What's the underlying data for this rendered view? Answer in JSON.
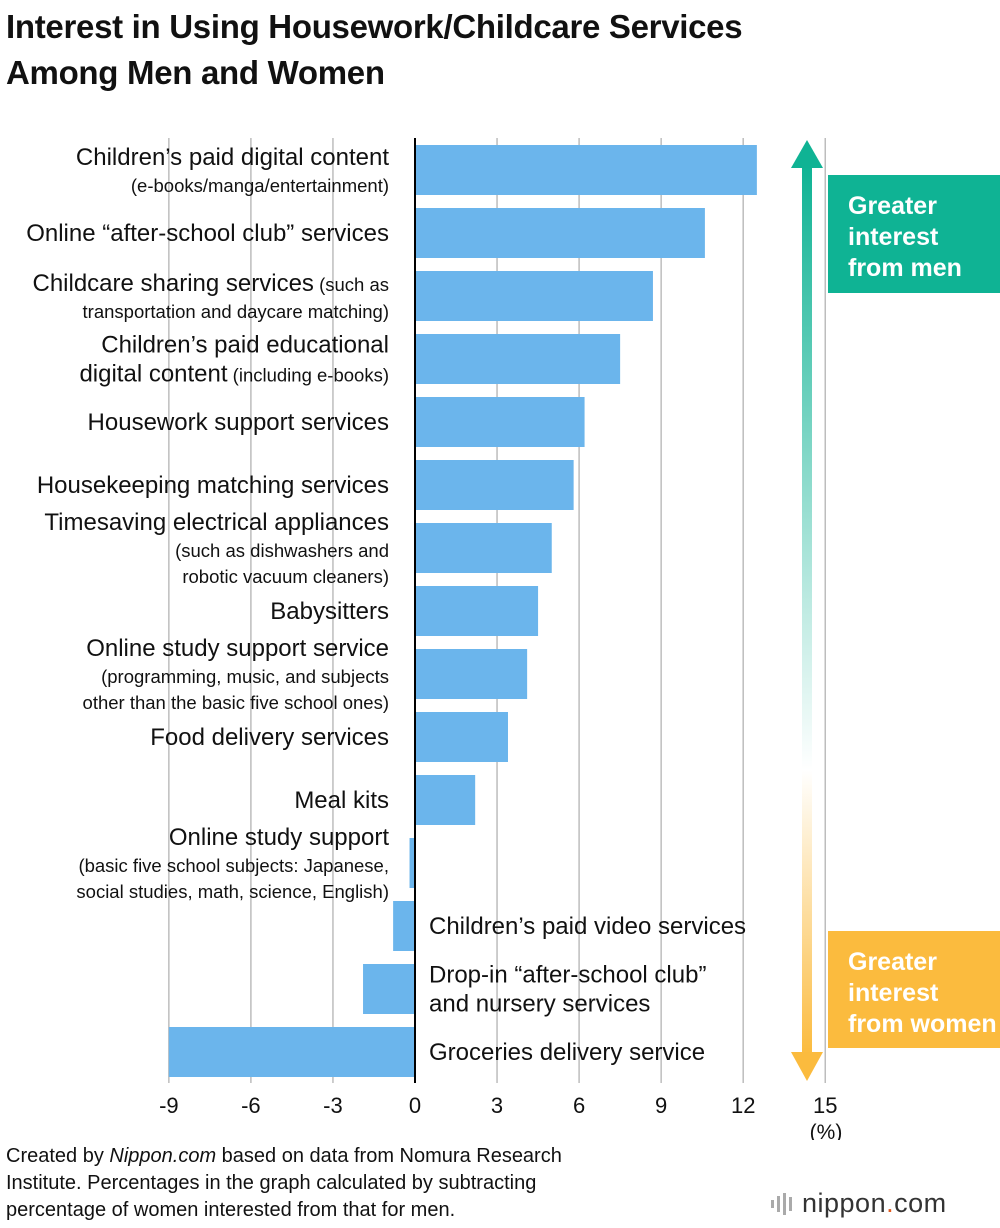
{
  "title_line1": "Interest in Using Housework/Childcare Services",
  "title_line2": "Among Men and Women",
  "legend": {
    "men": [
      "Greater",
      "interest",
      "from men"
    ],
    "women": [
      "Greater",
      "interest",
      "from women"
    ],
    "colors": {
      "men": "#0fb394",
      "women": "#fbbb3e",
      "bar": "#6bb5ec"
    }
  },
  "footer": {
    "prefix": "Created by ",
    "source": "Nippon.com",
    "line1_rest": " based on data from Nomura Research",
    "line2": "Institute. Percentages in the graph calculated by subtracting",
    "line3": "percentage of women interested from that for men."
  },
  "logo": {
    "name": "nippon",
    "dot": ".",
    "tld": "com"
  },
  "chart_data": {
    "type": "bar",
    "orientation": "horizontal",
    "title": "Interest in Using Housework/Childcare Services Among Men and Women",
    "xlabel": "(%)",
    "xlim": [
      -9,
      15
    ],
    "xticks": [
      "-9",
      "-6",
      "-3",
      "0",
      "3",
      "6",
      "9",
      "12",
      "15"
    ],
    "grid": true,
    "categories": [
      {
        "lines": [
          [
            [
              "Children’s paid digital content",
              "main"
            ]
          ],
          [
            [
              "(e-books/manga/entertainment)",
              "sub"
            ]
          ]
        ]
      },
      {
        "lines": [
          [
            [
              "Online “after-school club” services",
              "main"
            ]
          ]
        ]
      },
      {
        "lines": [
          [
            [
              "Childcare sharing services",
              "main"
            ],
            [
              " (such as",
              "sub"
            ]
          ],
          [
            [
              "transportation and daycare matching)",
              "sub"
            ]
          ]
        ]
      },
      {
        "lines": [
          [
            [
              "Children’s paid educational",
              "main"
            ]
          ],
          [
            [
              "digital content",
              "main"
            ],
            [
              " (including e-books)",
              "sub"
            ]
          ]
        ]
      },
      {
        "lines": [
          [
            [
              "Housework support services",
              "main"
            ]
          ]
        ]
      },
      {
        "lines": [
          [
            [
              "Housekeeping matching services",
              "main"
            ]
          ]
        ]
      },
      {
        "lines": [
          [
            [
              "Timesaving electrical appliances",
              "main"
            ]
          ],
          [
            [
              "(such as dishwashers and",
              "sub"
            ]
          ],
          [
            [
              "robotic vacuum cleaners)",
              "sub"
            ]
          ]
        ]
      },
      {
        "lines": [
          [
            [
              "Babysitters",
              "main"
            ]
          ]
        ]
      },
      {
        "lines": [
          [
            [
              "Online study support service",
              "main"
            ]
          ],
          [
            [
              "(programming, music, and subjects",
              "sub"
            ]
          ],
          [
            [
              "other than the basic five school ones)",
              "sub"
            ]
          ]
        ]
      },
      {
        "lines": [
          [
            [
              "Food delivery services",
              "main"
            ]
          ]
        ]
      },
      {
        "lines": [
          [
            [
              "Meal kits",
              "main"
            ]
          ]
        ]
      },
      {
        "lines": [
          [
            [
              "Online study support",
              "main"
            ]
          ],
          [
            [
              "(basic five school subjects: Japanese,",
              "sub"
            ]
          ],
          [
            [
              "social studies, math, science, English)",
              "sub"
            ]
          ]
        ]
      },
      {
        "lines": [
          [
            [
              "Children’s paid video services",
              "main"
            ]
          ]
        ]
      },
      {
        "lines": [
          [
            [
              "Drop-in “after-school club”",
              "main"
            ]
          ],
          [
            [
              "and nursery services",
              "main"
            ]
          ]
        ]
      },
      {
        "lines": [
          [
            [
              "Groceries delivery service",
              "main"
            ]
          ]
        ]
      }
    ],
    "values": [
      12.5,
      10.6,
      8.7,
      7.5,
      6.2,
      5.8,
      5.0,
      4.5,
      4.1,
      3.4,
      2.2,
      -0.2,
      -0.8,
      -1.9,
      -9.0
    ]
  }
}
